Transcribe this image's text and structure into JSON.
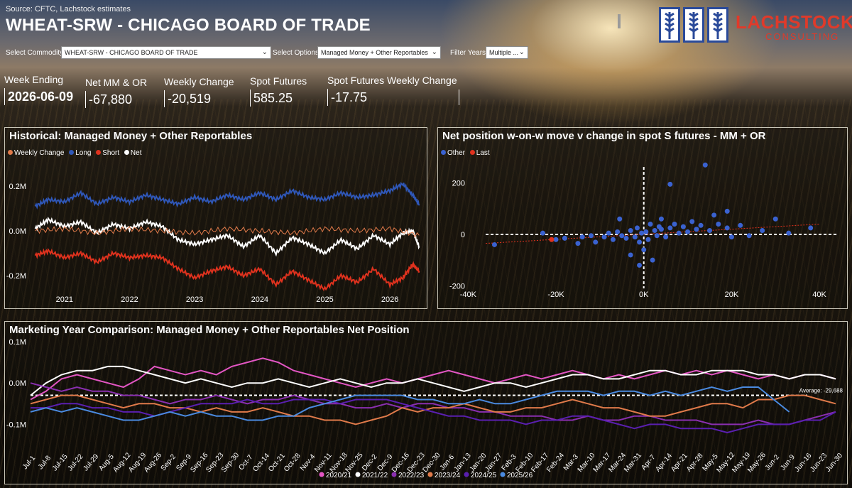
{
  "header": {
    "source": "Source: CFTC, Lachstock estimates",
    "title": "WHEAT-SRW - CHICAGO BOARD OF TRADE",
    "logo_name": "LACHSTOCK",
    "logo_sub": "CONSULTING"
  },
  "filters": {
    "commodity_label": "Select Commodity:",
    "commodity_value": "WHEAT-SRW - CHICAGO BOARD OF TRADE",
    "options_label": "Select Options:",
    "options_value": "Managed Money + Other Reportables",
    "years_label": "Filter Years:",
    "years_value": "Multiple ..."
  },
  "kpis": [
    {
      "label": "Week Ending",
      "value": "2026-06-09"
    },
    {
      "label": "Net MM & OR",
      "value": "-67,880"
    },
    {
      "label": "Weekly Change",
      "value": "-20,519"
    },
    {
      "label": "Spot Futures",
      "value": "585.25"
    },
    {
      "label": "Spot Futures Weekly Change",
      "value": "-17.75"
    }
  ],
  "colors": {
    "weekly_change": "#e07a4a",
    "long": "#2f57b8",
    "short": "#e0321e",
    "net": "#ffffff",
    "scatter_other": "#3a62d0",
    "scatter_last": "#e0321e",
    "y2020": "#e356c4",
    "y2021": "#ffffff",
    "y2022": "#8a2fb0",
    "y2023": "#e07a4a",
    "y2024": "#5a1fb0",
    "y2025": "#4a8ae0"
  },
  "chart_data": [
    {
      "type": "line",
      "title": "Historical: Managed Money + Other Reportables",
      "legend": [
        "Weekly Change",
        "Long",
        "Short",
        "Net"
      ],
      "x_ticks": [
        "2021",
        "2022",
        "2023",
        "2024",
        "2025",
        "2026"
      ],
      "y_ticks": [
        "0.2M",
        "0.0M",
        "-0.2M"
      ],
      "ylim": [
        -0.27,
        0.27
      ],
      "x_range": [
        2020.5,
        2026.5
      ],
      "series": [
        {
          "name": "Long",
          "x": [
            2020.55,
            2020.75,
            2021.0,
            2021.25,
            2021.5,
            2021.75,
            2022.0,
            2022.25,
            2022.5,
            2022.75,
            2023.0,
            2023.25,
            2023.5,
            2023.75,
            2024.0,
            2024.25,
            2024.5,
            2024.75,
            2025.0,
            2025.25,
            2025.5,
            2025.75,
            2026.0,
            2026.2,
            2026.35,
            2026.45
          ],
          "y": [
            0.11,
            0.14,
            0.13,
            0.17,
            0.12,
            0.15,
            0.13,
            0.16,
            0.14,
            0.12,
            0.15,
            0.13,
            0.16,
            0.14,
            0.17,
            0.14,
            0.18,
            0.15,
            0.14,
            0.17,
            0.15,
            0.16,
            0.18,
            0.21,
            0.16,
            0.12
          ]
        },
        {
          "name": "Short",
          "x": [
            2020.55,
            2020.75,
            2021.0,
            2021.25,
            2021.5,
            2021.75,
            2022.0,
            2022.25,
            2022.5,
            2022.75,
            2023.0,
            2023.25,
            2023.5,
            2023.75,
            2024.0,
            2024.25,
            2024.5,
            2024.75,
            2025.0,
            2025.25,
            2025.5,
            2025.75,
            2026.0,
            2026.2,
            2026.35,
            2026.45
          ],
          "y": [
            -0.11,
            -0.09,
            -0.12,
            -0.1,
            -0.14,
            -0.1,
            -0.12,
            -0.11,
            -0.12,
            -0.17,
            -0.21,
            -0.18,
            -0.16,
            -0.2,
            -0.17,
            -0.24,
            -0.18,
            -0.22,
            -0.26,
            -0.2,
            -0.23,
            -0.17,
            -0.24,
            -0.21,
            -0.15,
            -0.18
          ]
        },
        {
          "name": "Net",
          "x": [
            2020.55,
            2020.75,
            2021.0,
            2021.25,
            2021.5,
            2021.75,
            2022.0,
            2022.25,
            2022.5,
            2022.75,
            2023.0,
            2023.25,
            2023.5,
            2023.75,
            2024.0,
            2024.25,
            2024.5,
            2024.75,
            2025.0,
            2025.25,
            2025.5,
            2025.75,
            2026.0,
            2026.2,
            2026.35,
            2026.45
          ],
          "y": [
            0.01,
            0.05,
            0.02,
            0.04,
            -0.01,
            0.03,
            0.01,
            0.04,
            0.02,
            -0.04,
            -0.06,
            -0.04,
            -0.02,
            -0.07,
            -0.02,
            -0.1,
            -0.03,
            -0.06,
            -0.1,
            -0.04,
            -0.08,
            -0.02,
            -0.06,
            -0.01,
            0.0,
            -0.07
          ]
        },
        {
          "name": "Weekly Change",
          "x": [
            2020.55,
            2021.0,
            2021.5,
            2022.0,
            2022.5,
            2023.0,
            2023.5,
            2024.0,
            2024.5,
            2025.0,
            2025.5,
            2026.0,
            2026.45
          ],
          "y": [
            0.0,
            0.01,
            -0.01,
            0.01,
            0.0,
            -0.01,
            0.01,
            0.0,
            -0.01,
            0.01,
            0.0,
            0.01,
            -0.02
          ]
        }
      ]
    },
    {
      "type": "scatter",
      "title": "Net position w-on-w move v change in spot S futures - MM + OR",
      "legend": [
        "Other",
        "Last"
      ],
      "x_ticks": [
        "-40K",
        "-20K",
        "0K",
        "20K",
        "40K"
      ],
      "y_ticks": [
        "200",
        "0",
        "-200"
      ],
      "xlim": [
        -42000,
        45000
      ],
      "ylim": [
        -210,
        290
      ],
      "other_points": [
        [
          -34000,
          -40
        ],
        [
          -23000,
          5
        ],
        [
          -20000,
          -20
        ],
        [
          -18000,
          -15
        ],
        [
          -15000,
          -35
        ],
        [
          -14000,
          -10
        ],
        [
          -12000,
          -5
        ],
        [
          -11000,
          -30
        ],
        [
          -9000,
          -10
        ],
        [
          -8000,
          5
        ],
        [
          -7000,
          -20
        ],
        [
          -6000,
          10
        ],
        [
          -5000,
          -5
        ],
        [
          -4000,
          -15
        ],
        [
          -3000,
          15
        ],
        [
          -2000,
          -10
        ],
        [
          -1500,
          25
        ],
        [
          -1000,
          -30
        ],
        [
          -500,
          5
        ],
        [
          0,
          -60
        ],
        [
          500,
          10
        ],
        [
          1000,
          -20
        ],
        [
          1500,
          40
        ],
        [
          2000,
          -100
        ],
        [
          2500,
          15
        ],
        [
          3000,
          -5
        ],
        [
          3500,
          30
        ],
        [
          4000,
          20
        ],
        [
          5000,
          -10
        ],
        [
          6000,
          25
        ],
        [
          7000,
          40
        ],
        [
          8000,
          5
        ],
        [
          9000,
          30
        ],
        [
          10000,
          10
        ],
        [
          11000,
          50
        ],
        [
          12000,
          20
        ],
        [
          13000,
          35
        ],
        [
          14000,
          270
        ],
        [
          15000,
          15
        ],
        [
          17000,
          40
        ],
        [
          19000,
          25
        ],
        [
          20000,
          -10
        ],
        [
          22000,
          35
        ],
        [
          24000,
          -5
        ],
        [
          27000,
          15
        ],
        [
          30000,
          60
        ],
        [
          33000,
          5
        ],
        [
          38000,
          25
        ],
        [
          6000,
          195
        ],
        [
          -1000,
          -120
        ],
        [
          -3000,
          -80
        ],
        [
          4000,
          60
        ],
        [
          16000,
          75
        ],
        [
          -5500,
          60
        ],
        [
          19000,
          90
        ]
      ],
      "last_point": [
        -21000,
        -20
      ]
    },
    {
      "type": "line",
      "title": "Marketing Year Comparison: Managed Money + Other Reportables Net Position",
      "x_ticks": [
        "Jul-1",
        "Jul-8",
        "Jul-15",
        "Jul-22",
        "Jul-29",
        "Aug-5",
        "Aug-12",
        "Aug-19",
        "Aug-26",
        "Sep-2",
        "Sep-9",
        "Sep-16",
        "Sep-23",
        "Sep-30",
        "Oct-7",
        "Oct-14",
        "Oct-21",
        "Oct-28",
        "Nov-4",
        "Nov-11",
        "Nov-18",
        "Nov-25",
        "Dec-2",
        "Dec-9",
        "Dec-16",
        "Dec-23",
        "Dec-30",
        "Jan-6",
        "Jan-13",
        "Jan-20",
        "Jan-27",
        "Feb-3",
        "Feb-10",
        "Feb-17",
        "Feb-24",
        "Mar-3",
        "Mar-10",
        "Mar-17",
        "Mar-24",
        "Mar-31",
        "Apr-7",
        "Apr-14",
        "Apr-21",
        "Apr-28",
        "May-5",
        "May-12",
        "May-19",
        "May-26",
        "Jun-2",
        "Jun-9",
        "Jun-16",
        "Jun-23",
        "Jun-30"
      ],
      "y_ticks": [
        "0.1M",
        "0.0M",
        "-0.1M"
      ],
      "ylim": [
        -0.12,
        0.1
      ],
      "average_label": "Average: -29,688",
      "average": -0.0297,
      "legend": [
        "2020/21",
        "2021/22",
        "2022/23",
        "2023/24",
        "2024/25",
        "2025/26"
      ],
      "series": [
        {
          "name": "2020/21",
          "values": [
            -0.04,
            -0.02,
            0.01,
            0.02,
            0.01,
            0.0,
            -0.01,
            0.01,
            0.04,
            0.03,
            0.02,
            0.03,
            0.02,
            0.04,
            0.05,
            0.06,
            0.05,
            0.03,
            0.02,
            0.01,
            0.0,
            -0.01,
            0.0,
            0.01,
            0.0,
            0.01,
            0.02,
            0.03,
            0.02,
            0.01,
            0.0,
            0.01,
            0.02,
            0.01,
            0.02,
            0.03,
            0.02,
            0.01,
            0.02,
            0.01,
            0.02,
            0.03,
            0.02,
            0.03,
            0.02,
            0.03,
            0.02,
            0.01,
            0.02,
            0.01,
            0.02,
            0.02,
            0.01
          ]
        },
        {
          "name": "2021/22",
          "values": [
            -0.03,
            0.0,
            0.02,
            0.03,
            0.03,
            0.04,
            0.04,
            0.03,
            0.02,
            0.01,
            0.0,
            0.01,
            0.0,
            -0.01,
            0.0,
            0.0,
            0.01,
            0.0,
            -0.01,
            0.0,
            0.01,
            0.0,
            -0.01,
            0.0,
            0.0,
            0.01,
            0.0,
            -0.01,
            -0.02,
            -0.01,
            0.0,
            0.0,
            -0.01,
            0.0,
            0.01,
            0.02,
            0.02,
            0.01,
            0.01,
            0.02,
            0.03,
            0.03,
            0.02,
            0.02,
            0.03,
            0.03,
            0.03,
            0.02,
            0.02,
            0.01,
            0.02,
            0.02,
            0.01
          ]
        },
        {
          "name": "2022/23",
          "values": [
            0.0,
            -0.01,
            -0.02,
            -0.01,
            -0.02,
            -0.02,
            -0.03,
            -0.03,
            -0.04,
            -0.05,
            -0.04,
            -0.04,
            -0.03,
            -0.04,
            -0.05,
            -0.04,
            -0.04,
            -0.03,
            -0.04,
            -0.05,
            -0.05,
            -0.06,
            -0.06,
            -0.05,
            -0.06,
            -0.05,
            -0.05,
            -0.06,
            -0.06,
            -0.07,
            -0.07,
            -0.08,
            -0.08,
            -0.08,
            -0.09,
            -0.09,
            -0.08,
            -0.09,
            -0.09,
            -0.08,
            -0.08,
            -0.09,
            -0.09,
            -0.09,
            -0.1,
            -0.1,
            -0.1,
            -0.09,
            -0.1,
            -0.1,
            -0.09,
            -0.08,
            -0.07
          ]
        },
        {
          "name": "2023/24",
          "values": [
            -0.05,
            -0.04,
            -0.03,
            -0.03,
            -0.04,
            -0.05,
            -0.06,
            -0.05,
            -0.05,
            -0.06,
            -0.06,
            -0.07,
            -0.06,
            -0.07,
            -0.07,
            -0.06,
            -0.07,
            -0.08,
            -0.08,
            -0.09,
            -0.09,
            -0.1,
            -0.09,
            -0.08,
            -0.06,
            -0.07,
            -0.06,
            -0.06,
            -0.05,
            -0.06,
            -0.07,
            -0.07,
            -0.06,
            -0.06,
            -0.05,
            -0.04,
            -0.05,
            -0.06,
            -0.06,
            -0.07,
            -0.08,
            -0.08,
            -0.07,
            -0.06,
            -0.05,
            -0.05,
            -0.06,
            -0.04,
            -0.04,
            -0.03,
            -0.03,
            -0.04,
            -0.05
          ]
        },
        {
          "name": "2024/25",
          "values": [
            -0.06,
            -0.06,
            -0.05,
            -0.05,
            -0.06,
            -0.06,
            -0.07,
            -0.07,
            -0.08,
            -0.07,
            -0.06,
            -0.05,
            -0.05,
            -0.05,
            -0.04,
            -0.05,
            -0.05,
            -0.04,
            -0.04,
            -0.04,
            -0.05,
            -0.04,
            -0.04,
            -0.04,
            -0.05,
            -0.06,
            -0.07,
            -0.08,
            -0.08,
            -0.09,
            -0.09,
            -0.09,
            -0.1,
            -0.09,
            -0.09,
            -0.08,
            -0.08,
            -0.09,
            -0.1,
            -0.11,
            -0.1,
            -0.1,
            -0.11,
            -0.11,
            -0.11,
            -0.12,
            -0.11,
            -0.1,
            -0.1,
            -0.1,
            -0.09,
            -0.09,
            -0.07
          ]
        },
        {
          "name": "2025/26",
          "values": [
            -0.07,
            -0.06,
            -0.07,
            -0.06,
            -0.07,
            -0.08,
            -0.09,
            -0.09,
            -0.08,
            -0.07,
            -0.08,
            -0.07,
            -0.08,
            -0.08,
            -0.09,
            -0.09,
            -0.08,
            -0.08,
            -0.06,
            -0.05,
            -0.04,
            -0.03,
            -0.03,
            -0.03,
            -0.03,
            -0.04,
            -0.04,
            -0.05,
            -0.05,
            -0.04,
            -0.05,
            -0.05,
            -0.04,
            -0.03,
            -0.02,
            -0.02,
            -0.02,
            -0.03,
            -0.02,
            -0.02,
            -0.03,
            -0.02,
            -0.03,
            -0.02,
            -0.01,
            -0.02,
            -0.01,
            -0.01,
            -0.04,
            -0.07,
            null,
            null,
            null
          ]
        }
      ]
    }
  ]
}
